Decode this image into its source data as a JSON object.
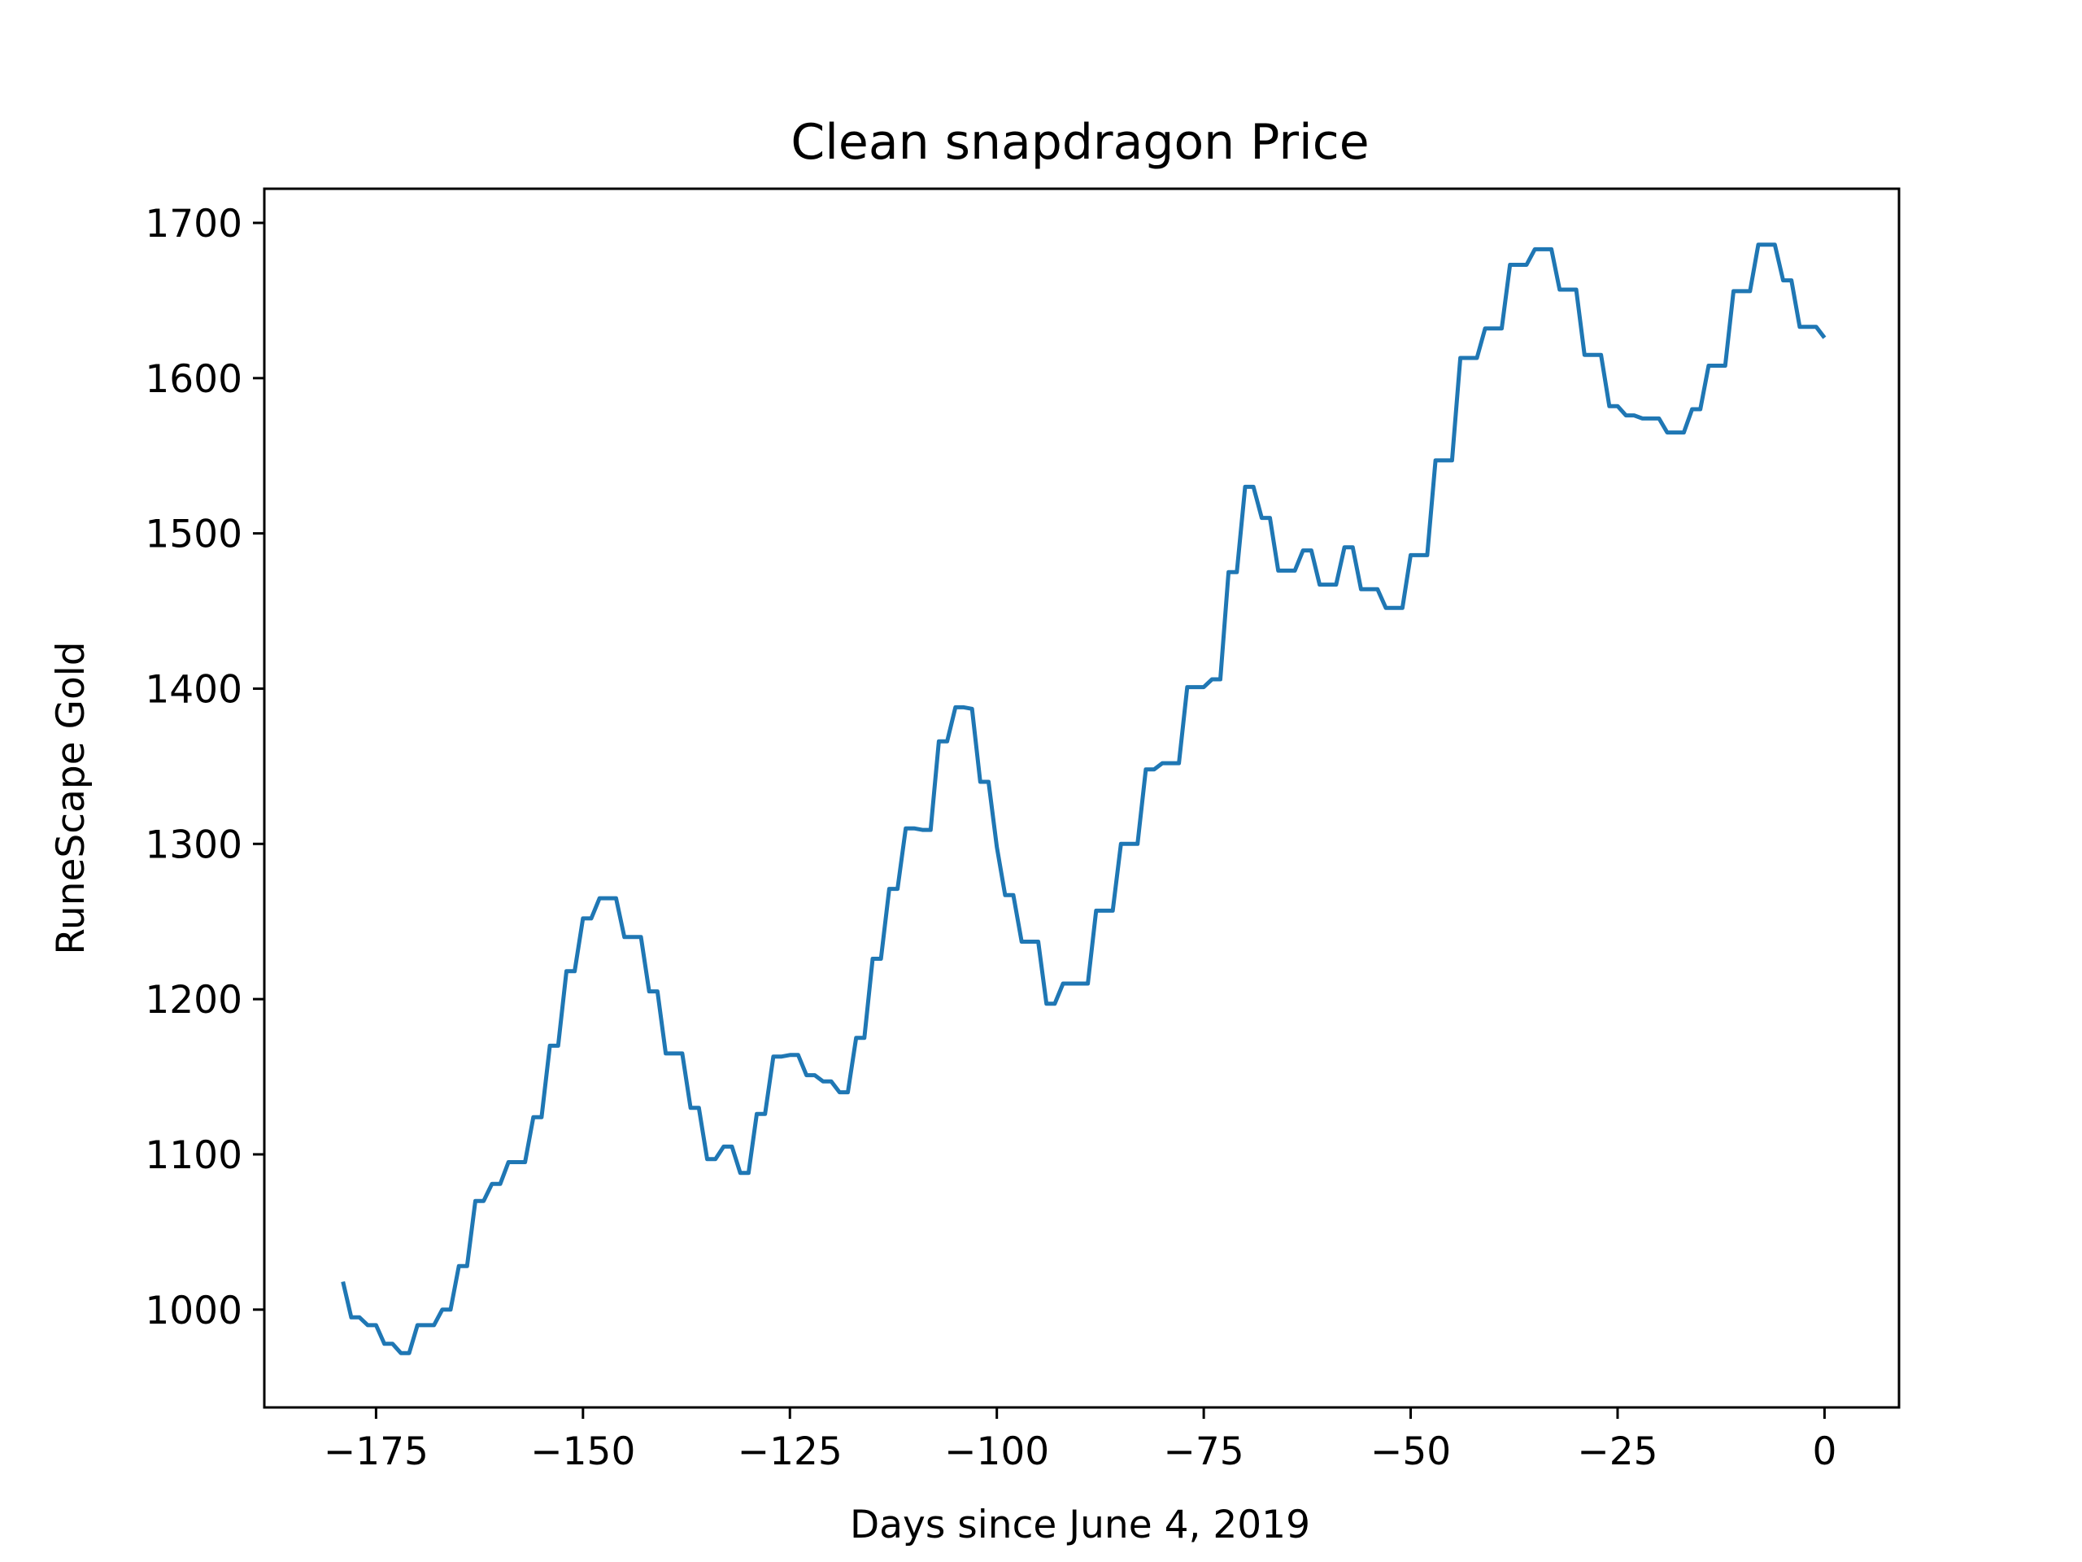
{
  "chart_data": {
    "type": "line",
    "title": "Clean snapdragon Price",
    "xlabel": "Days since June 4, 2019",
    "ylabel": "RuneScape Gold",
    "xlim": [
      -188.5,
      9
    ],
    "ylim": [
      937,
      1722
    ],
    "xticks": [
      -175,
      -150,
      -125,
      -100,
      -75,
      -50,
      -25,
      0
    ],
    "xtick_labels": [
      "−175",
      "−150",
      "−125",
      "−100",
      "−75",
      "−50",
      "−25",
      "0"
    ],
    "yticks": [
      1000,
      1100,
      1200,
      1300,
      1400,
      1500,
      1600,
      1700
    ],
    "ytick_labels": [
      "1000",
      "1100",
      "1200",
      "1300",
      "1400",
      "1500",
      "1600",
      "1700"
    ],
    "grid": false,
    "series": [
      {
        "color": "#1f77b4",
        "x": [
          -179,
          -178,
          -177,
          -176,
          -175,
          -174,
          -173,
          -172,
          -171,
          -170,
          -169,
          -168,
          -167,
          -166,
          -165,
          -164,
          -163,
          -162,
          -161,
          -160,
          -159,
          -158,
          -157,
          -156,
          -155,
          -154,
          -153,
          -152,
          -151,
          -150,
          -149,
          -148,
          -147,
          -146,
          -145,
          -144,
          -143,
          -142,
          -141,
          -140,
          -139,
          -138,
          -137,
          -136,
          -135,
          -134,
          -133,
          -132,
          -131,
          -130,
          -129,
          -128,
          -127,
          -126,
          -125,
          -124,
          -123,
          -122,
          -121,
          -120,
          -119,
          -118,
          -117,
          -116,
          -115,
          -114,
          -113,
          -112,
          -111,
          -110,
          -109,
          -108,
          -107,
          -106,
          -105,
          -104,
          -103,
          -102,
          -101,
          -100,
          -99,
          -98,
          -97,
          -96,
          -95,
          -94,
          -93,
          -92,
          -91,
          -90,
          -89,
          -88,
          -87,
          -86,
          -85,
          -84,
          -83,
          -82,
          -81,
          -80,
          -79,
          -78,
          -77,
          -76,
          -75,
          -74,
          -73,
          -72,
          -71,
          -70,
          -69,
          -68,
          -67,
          -66,
          -65,
          -64,
          -63,
          -62,
          -61,
          -60,
          -59,
          -58,
          -57,
          -56,
          -55,
          -54,
          -53,
          -52,
          -51,
          -50,
          -49,
          -48,
          -47,
          -46,
          -45,
          -44,
          -43,
          -42,
          -41,
          -40,
          -39,
          -38,
          -37,
          -36,
          -35,
          -34,
          -33,
          -32,
          -31,
          -30,
          -29,
          -28,
          -27,
          -26,
          -25,
          -24,
          -23,
          -22,
          -21,
          -20,
          -19,
          -18,
          -17,
          -16,
          -15,
          -14,
          -13,
          -12,
          -11,
          -10,
          -9,
          -8,
          -7,
          -6,
          -5,
          -4,
          -3,
          -2,
          -1,
          0
        ],
        "y": [
          1018,
          995,
          995,
          990,
          990,
          978,
          978,
          972,
          972,
          990,
          990,
          990,
          1000,
          1000,
          1028,
          1028,
          1070,
          1070,
          1081,
          1081,
          1095,
          1095,
          1095,
          1124,
          1124,
          1170,
          1170,
          1218,
          1218,
          1252,
          1252,
          1265,
          1265,
          1265,
          1240,
          1240,
          1240,
          1205,
          1205,
          1165,
          1165,
          1165,
          1130,
          1130,
          1097,
          1097,
          1105,
          1105,
          1088,
          1088,
          1126,
          1126,
          1163,
          1163,
          1164,
          1164,
          1151,
          1151,
          1147,
          1147,
          1140,
          1140,
          1175,
          1175,
          1226,
          1226,
          1271,
          1271,
          1310,
          1310,
          1309,
          1309,
          1366,
          1366,
          1388,
          1388,
          1387,
          1340,
          1340,
          1298,
          1267,
          1267,
          1237,
          1237,
          1237,
          1197,
          1197,
          1210,
          1210,
          1210,
          1210,
          1257,
          1257,
          1257,
          1300,
          1300,
          1300,
          1348,
          1348,
          1352,
          1352,
          1352,
          1401,
          1401,
          1401,
          1406,
          1406,
          1475,
          1475,
          1530,
          1530,
          1510,
          1510,
          1476,
          1476,
          1476,
          1489,
          1489,
          1467,
          1467,
          1467,
          1491,
          1491,
          1464,
          1464,
          1464,
          1452,
          1452,
          1452,
          1486,
          1486,
          1486,
          1547,
          1547,
          1547,
          1613,
          1613,
          1613,
          1632,
          1632,
          1632,
          1673,
          1673,
          1673,
          1683,
          1683,
          1683,
          1657,
          1657,
          1657,
          1615,
          1615,
          1615,
          1582,
          1582,
          1576,
          1576,
          1574,
          1574,
          1574,
          1565,
          1565,
          1565,
          1580,
          1580,
          1608,
          1608,
          1608,
          1656,
          1656,
          1656,
          1686,
          1686,
          1686,
          1663,
          1663,
          1633,
          1633,
          1633,
          1626
        ]
      }
    ]
  }
}
